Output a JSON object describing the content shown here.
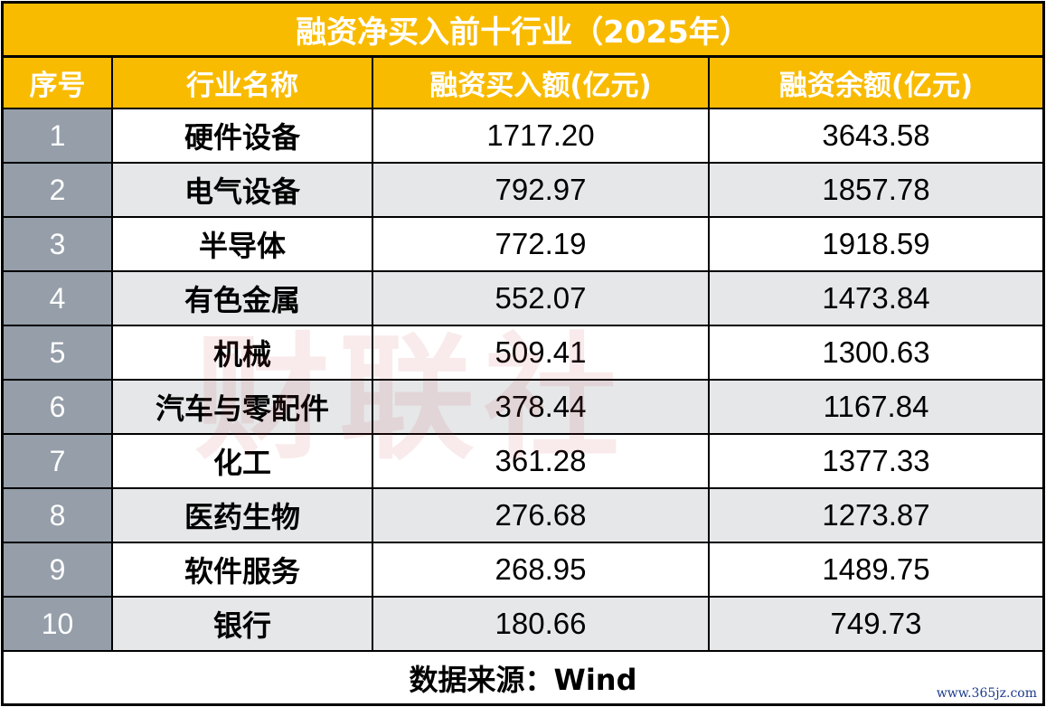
{
  "title": "融资净买入前十行业（2025年）",
  "columns": [
    "序号",
    "行业名称",
    "融资买入额(亿元)",
    "融资余额(亿元)"
  ],
  "rows": [
    [
      "1",
      "硬件设备",
      "1717.20",
      "3643.58"
    ],
    [
      "2",
      "电气设备",
      "792.97",
      "1857.78"
    ],
    [
      "3",
      "半导体",
      "772.19",
      "1918.59"
    ],
    [
      "4",
      "有色金属",
      "552.07",
      "1473.84"
    ],
    [
      "5",
      "机械",
      "509.41",
      "1300.63"
    ],
    [
      "6",
      "汽车与零配件",
      "378.44",
      "1167.84"
    ],
    [
      "7",
      "化工",
      "361.28",
      "1377.33"
    ],
    [
      "8",
      "医药生物",
      "276.68",
      "1273.87"
    ],
    [
      "9",
      "软件服务",
      "268.95",
      "1489.75"
    ],
    [
      "10",
      "银行",
      "180.66",
      "749.73"
    ]
  ],
  "footer": {
    "source": "数据来源：Wind",
    "site": "www.365jz.com"
  },
  "watermark": "财联社",
  "colors": {
    "header": "#f9bb00",
    "index_cell": "#959ea9",
    "alt_row": "#e6e7e9"
  }
}
